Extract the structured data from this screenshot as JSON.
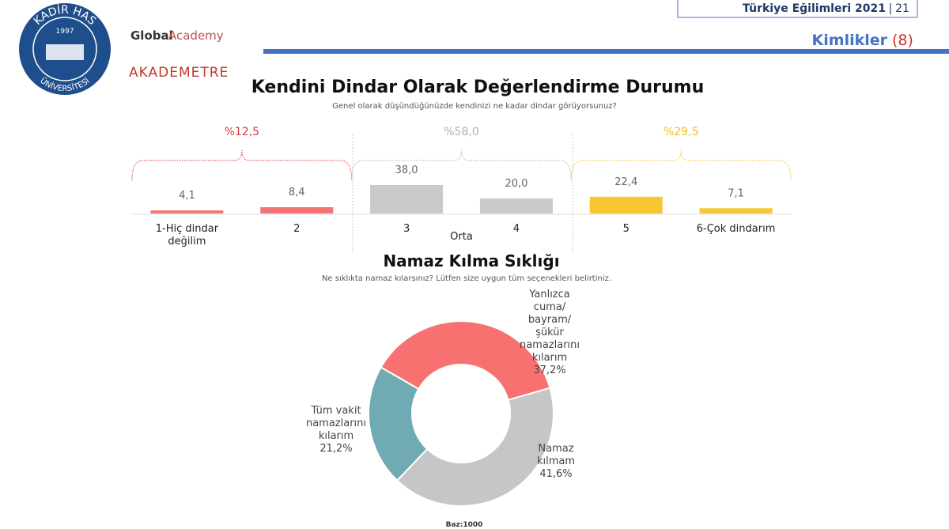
{
  "header": {
    "report": "Türkiye Eğilimleri 2021",
    "separator": "|",
    "page": "21",
    "section": "Kimlikler",
    "section_number": "(8)",
    "university": "KADİR HAS",
    "university_bottom": "ÜNİVERSİTESİ",
    "founded": "1997",
    "partner": "Global",
    "partner_rest": "Academy",
    "partner2": "AKADEMETRE"
  },
  "chart_data": [
    {
      "type": "bar",
      "title": "Kendini Dindar Olarak Değerlendirme Durumu",
      "subtitle": "Genel olarak düşündüğünüzde kendinizi ne kadar dindar görüyorsunuz?",
      "categories": [
        "1-Hiç dindar değilim",
        "2",
        "3",
        "4",
        "5",
        "6-Çok dindarım"
      ],
      "values": [
        4.1,
        8.4,
        38.0,
        20.0,
        22.4,
        7.1
      ],
      "value_labels": [
        "4,1",
        "8,4",
        "38,0",
        "20,0",
        "22,4",
        "7,1"
      ],
      "colors": [
        "#f27474",
        "#f27474",
        "#c9c9c9",
        "#c9c9c9",
        "#f7c633",
        "#f7c633"
      ],
      "groups": [
        {
          "value": 12.5,
          "label": "%12,5",
          "color": "#d93a3a"
        },
        {
          "value": 58.0,
          "label": "%58,0",
          "color": "#b0b0b0",
          "name": "Orta"
        },
        {
          "value": 29.5,
          "label": "%29,5",
          "color": "#f2c01d"
        }
      ]
    },
    {
      "type": "donut",
      "title": "Namaz Kılma Sıklığı",
      "subtitle": "Ne sıklıkta namaz kılarsınız? Lütfen size uygun tüm seçenekleri belirtiniz.",
      "categories": [
        "Yanlızca cuma/ bayram/ şükür namazlarını kılarım",
        "Namaz kılmam",
        "Tüm vakit namazlarını kılarım"
      ],
      "values": [
        37.2,
        41.6,
        21.2
      ],
      "value_labels": [
        "37,2%",
        "41,6%",
        "21,2%"
      ],
      "colors": [
        "#f87171",
        "#c6c6c6",
        "#70abb3"
      ]
    }
  ],
  "footer": "Baz:1000"
}
